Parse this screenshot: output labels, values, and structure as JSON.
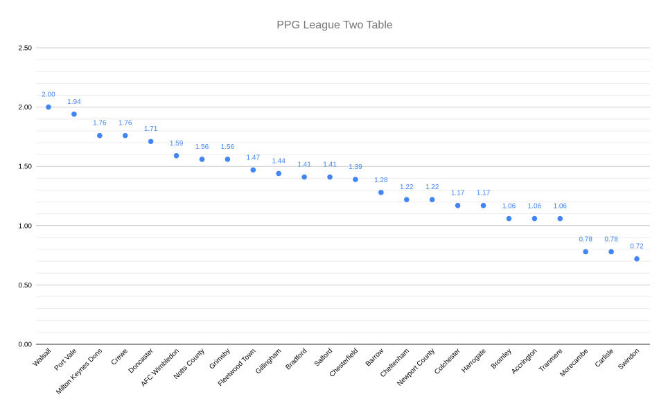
{
  "chart_data": {
    "type": "scatter",
    "title": "PPG League Two Table",
    "xlabel": "",
    "ylabel": "",
    "ylim": [
      0,
      2.5
    ],
    "yticks": [
      "0.00",
      "0.50",
      "1.00",
      "1.50",
      "2.00",
      "2.50"
    ],
    "grid": true,
    "legend": "none",
    "point_color": "#4285f4",
    "label_color": "#4285f4",
    "categories": [
      "Walsall",
      "Port Vale",
      "Milton Keynes Dons",
      "Crewe",
      "Doncaster",
      "AFC Wimbledon",
      "Notts County",
      "Grimsby",
      "Fleetwood Town",
      "Gillingham",
      "Bradford",
      "Salford",
      "Chesterfield",
      "Barrow",
      "Cheltenham",
      "Newport County",
      "Colchester",
      "Harrogate",
      "Bromley",
      "Accrington",
      "Tranmere",
      "Morecambe",
      "Carlisle",
      "Swindon"
    ],
    "values": [
      2.0,
      1.94,
      1.76,
      1.76,
      1.71,
      1.59,
      1.56,
      1.56,
      1.47,
      1.44,
      1.41,
      1.41,
      1.39,
      1.28,
      1.22,
      1.22,
      1.17,
      1.17,
      1.06,
      1.06,
      1.06,
      0.78,
      0.78,
      0.72
    ],
    "data_labels": [
      "2.00",
      "1.94",
      "1.76",
      "1.76",
      "1.71",
      "1.59",
      "1.56",
      "1.56",
      "1.47",
      "1.44",
      "1.41",
      "1.41",
      "1.39",
      "1.28",
      "1.22",
      "1.22",
      "1.17",
      "1.17",
      "1.06",
      "1.06",
      "1.06",
      "0.78",
      "0.78",
      "0.72"
    ]
  }
}
